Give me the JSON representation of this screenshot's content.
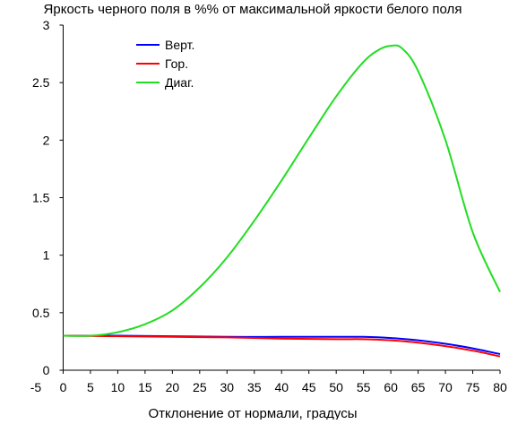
{
  "chart_data": {
    "type": "line",
    "title": "Яркость черного поля в %% от максимальной яркости белого поля",
    "xlabel": "Отклонение от нормали, градусы",
    "ylabel": "",
    "xlim": [
      -5,
      80
    ],
    "ylim": [
      0,
      3
    ],
    "x_ticks": [
      -5,
      0,
      5,
      10,
      15,
      20,
      25,
      30,
      35,
      40,
      45,
      50,
      55,
      60,
      65,
      70,
      75,
      80
    ],
    "x_tick_labels": [
      "-5",
      "0",
      "5",
      "10",
      "15",
      "20",
      "25",
      "30",
      "35",
      "40",
      "45",
      "50",
      "55",
      "60",
      "65",
      "70",
      "75",
      "80"
    ],
    "y_ticks": [
      0,
      0.5,
      1,
      1.5,
      2,
      2.5,
      3
    ],
    "y_tick_labels": [
      "0",
      "0.5",
      "1",
      "1.5",
      "2",
      "2.5",
      "3"
    ],
    "grid": false,
    "legend_position": "top-left",
    "series": [
      {
        "name": "Верт.",
        "color": "#0000ff",
        "x": [
          0,
          10,
          20,
          30,
          40,
          50,
          55,
          60,
          65,
          70,
          75,
          80
        ],
        "y": [
          0.3,
          0.3,
          0.295,
          0.29,
          0.29,
          0.29,
          0.29,
          0.28,
          0.26,
          0.23,
          0.19,
          0.14
        ]
      },
      {
        "name": "Гор.",
        "color": "#ff0000",
        "x": [
          0,
          10,
          20,
          30,
          40,
          50,
          55,
          60,
          65,
          70,
          75,
          80
        ],
        "y": [
          0.3,
          0.295,
          0.29,
          0.285,
          0.275,
          0.27,
          0.27,
          0.26,
          0.24,
          0.21,
          0.17,
          0.12
        ]
      },
      {
        "name": "Диаг.",
        "color": "#22dd22",
        "x": [
          0,
          5,
          10,
          15,
          20,
          25,
          30,
          35,
          40,
          45,
          50,
          55,
          58,
          60,
          62,
          65,
          70,
          75,
          80
        ],
        "y": [
          0.3,
          0.3,
          0.33,
          0.4,
          0.52,
          0.72,
          0.98,
          1.3,
          1.65,
          2.02,
          2.38,
          2.68,
          2.79,
          2.82,
          2.8,
          2.6,
          2.0,
          1.2,
          0.68
        ]
      }
    ]
  }
}
